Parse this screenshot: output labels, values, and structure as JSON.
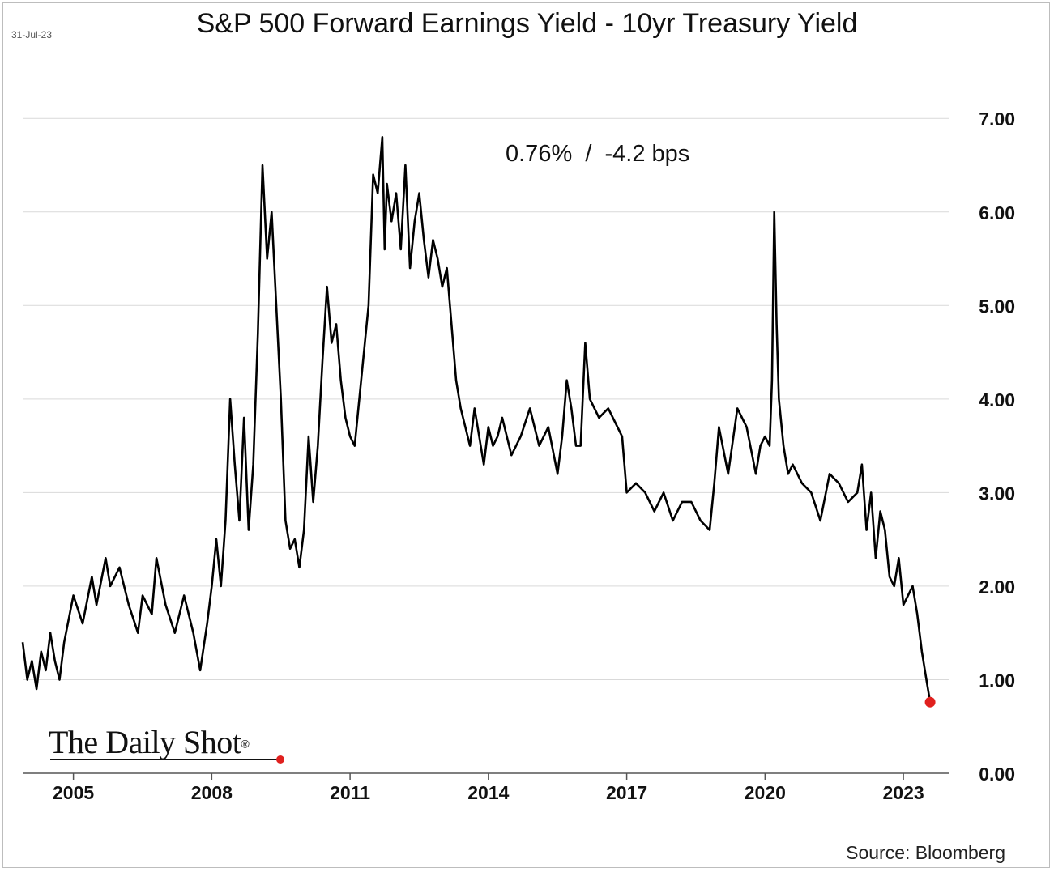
{
  "date_stamp": "31-Jul-23",
  "logo": {
    "text": "The Daily Shot",
    "registered_mark": "®"
  },
  "source": "Source: Bloomberg",
  "colors": {
    "line": "#000000",
    "endpoint": "#e0201e",
    "grid": "#d9d9d9",
    "axis": "#555555"
  },
  "chart_data": {
    "type": "line",
    "title": "S&P 500 Forward Earnings Yield - 10yr Treasury Yield",
    "annotation": "0.76%  /  -4.2 bps",
    "xlabel": "",
    "ylabel": "",
    "ylim": [
      0,
      7.4
    ],
    "xlim": [
      2003.9,
      2024.0
    ],
    "x_ticks": [
      2005,
      2008,
      2011,
      2014,
      2017,
      2020,
      2023
    ],
    "x_tick_labels": [
      "2005",
      "2008",
      "2011",
      "2014",
      "2017",
      "2020",
      "2023"
    ],
    "y_ticks": [
      0,
      1,
      2,
      3,
      4,
      5,
      6,
      7
    ],
    "y_tick_labels": [
      "0.00",
      "1.00",
      "2.00",
      "3.00",
      "4.00",
      "5.00",
      "6.00",
      "7.00"
    ],
    "y_axis_side": "right",
    "grid": "horizontal",
    "series": [
      {
        "last_value": 0.76,
        "x": [
          2003.9,
          2004.0,
          2004.1,
          2004.2,
          2004.3,
          2004.4,
          2004.5,
          2004.6,
          2004.7,
          2004.8,
          2005.0,
          2005.2,
          2005.4,
          2005.5,
          2005.7,
          2005.8,
          2006.0,
          2006.2,
          2006.4,
          2006.5,
          2006.7,
          2006.8,
          2007.0,
          2007.2,
          2007.4,
          2007.5,
          2007.6,
          2007.75,
          2007.9,
          2008.0,
          2008.1,
          2008.2,
          2008.3,
          2008.4,
          2008.5,
          2008.6,
          2008.7,
          2008.8,
          2008.9,
          2009.0,
          2009.1,
          2009.2,
          2009.3,
          2009.4,
          2009.5,
          2009.6,
          2009.7,
          2009.8,
          2009.9,
          2010.0,
          2010.1,
          2010.2,
          2010.3,
          2010.4,
          2010.5,
          2010.6,
          2010.7,
          2010.8,
          2010.9,
          2011.0,
          2011.1,
          2011.2,
          2011.3,
          2011.4,
          2011.5,
          2011.6,
          2011.7,
          2011.75,
          2011.8,
          2011.9,
          2012.0,
          2012.1,
          2012.2,
          2012.3,
          2012.4,
          2012.5,
          2012.6,
          2012.7,
          2012.8,
          2012.9,
          2013.0,
          2013.1,
          2013.2,
          2013.3,
          2013.4,
          2013.5,
          2013.6,
          2013.7,
          2013.8,
          2013.9,
          2014.0,
          2014.1,
          2014.2,
          2014.3,
          2014.5,
          2014.7,
          2014.9,
          2015.1,
          2015.3,
          2015.5,
          2015.6,
          2015.7,
          2015.8,
          2015.9,
          2016.0,
          2016.1,
          2016.2,
          2016.4,
          2016.6,
          2016.8,
          2016.9,
          2017.0,
          2017.2,
          2017.4,
          2017.6,
          2017.8,
          2018.0,
          2018.2,
          2018.4,
          2018.6,
          2018.8,
          2018.9,
          2019.0,
          2019.2,
          2019.4,
          2019.6,
          2019.8,
          2019.9,
          2020.0,
          2020.1,
          2020.15,
          2020.2,
          2020.25,
          2020.3,
          2020.4,
          2020.5,
          2020.6,
          2020.8,
          2021.0,
          2021.2,
          2021.4,
          2021.6,
          2021.8,
          2022.0,
          2022.1,
          2022.2,
          2022.3,
          2022.4,
          2022.5,
          2022.6,
          2022.7,
          2022.8,
          2022.9,
          2023.0,
          2023.1,
          2023.2,
          2023.3,
          2023.4,
          2023.5,
          2023.58
        ],
        "y": [
          1.4,
          1.0,
          1.2,
          0.9,
          1.3,
          1.1,
          1.5,
          1.2,
          1.0,
          1.4,
          1.9,
          1.6,
          2.1,
          1.8,
          2.3,
          2.0,
          2.2,
          1.8,
          1.5,
          1.9,
          1.7,
          2.3,
          1.8,
          1.5,
          1.9,
          1.7,
          1.5,
          1.1,
          1.6,
          2.0,
          2.5,
          2.0,
          2.7,
          4.0,
          3.3,
          2.7,
          3.8,
          2.6,
          3.3,
          4.7,
          6.5,
          5.5,
          6.0,
          5.0,
          4.0,
          2.7,
          2.4,
          2.5,
          2.2,
          2.6,
          3.6,
          2.9,
          3.5,
          4.4,
          5.2,
          4.6,
          4.8,
          4.2,
          3.8,
          3.6,
          3.5,
          4.0,
          4.5,
          5.0,
          6.4,
          6.2,
          6.8,
          5.6,
          6.3,
          5.9,
          6.2,
          5.6,
          6.5,
          5.4,
          5.9,
          6.2,
          5.7,
          5.3,
          5.7,
          5.5,
          5.2,
          5.4,
          4.8,
          4.2,
          3.9,
          3.7,
          3.5,
          3.9,
          3.6,
          3.3,
          3.7,
          3.5,
          3.6,
          3.8,
          3.4,
          3.6,
          3.9,
          3.5,
          3.7,
          3.2,
          3.6,
          4.2,
          3.9,
          3.5,
          3.5,
          4.6,
          4.0,
          3.8,
          3.9,
          3.7,
          3.6,
          3.0,
          3.1,
          3.0,
          2.8,
          3.0,
          2.7,
          2.9,
          2.9,
          2.7,
          2.6,
          3.1,
          3.7,
          3.2,
          3.9,
          3.7,
          3.2,
          3.5,
          3.6,
          3.5,
          4.2,
          6.0,
          4.8,
          4.0,
          3.5,
          3.2,
          3.3,
          3.1,
          3.0,
          2.7,
          3.2,
          3.1,
          2.9,
          3.0,
          3.3,
          2.6,
          3.0,
          2.3,
          2.8,
          2.6,
          2.1,
          2.0,
          2.3,
          1.8,
          1.9,
          2.0,
          1.7,
          1.3,
          1.0,
          0.76
        ]
      }
    ]
  }
}
